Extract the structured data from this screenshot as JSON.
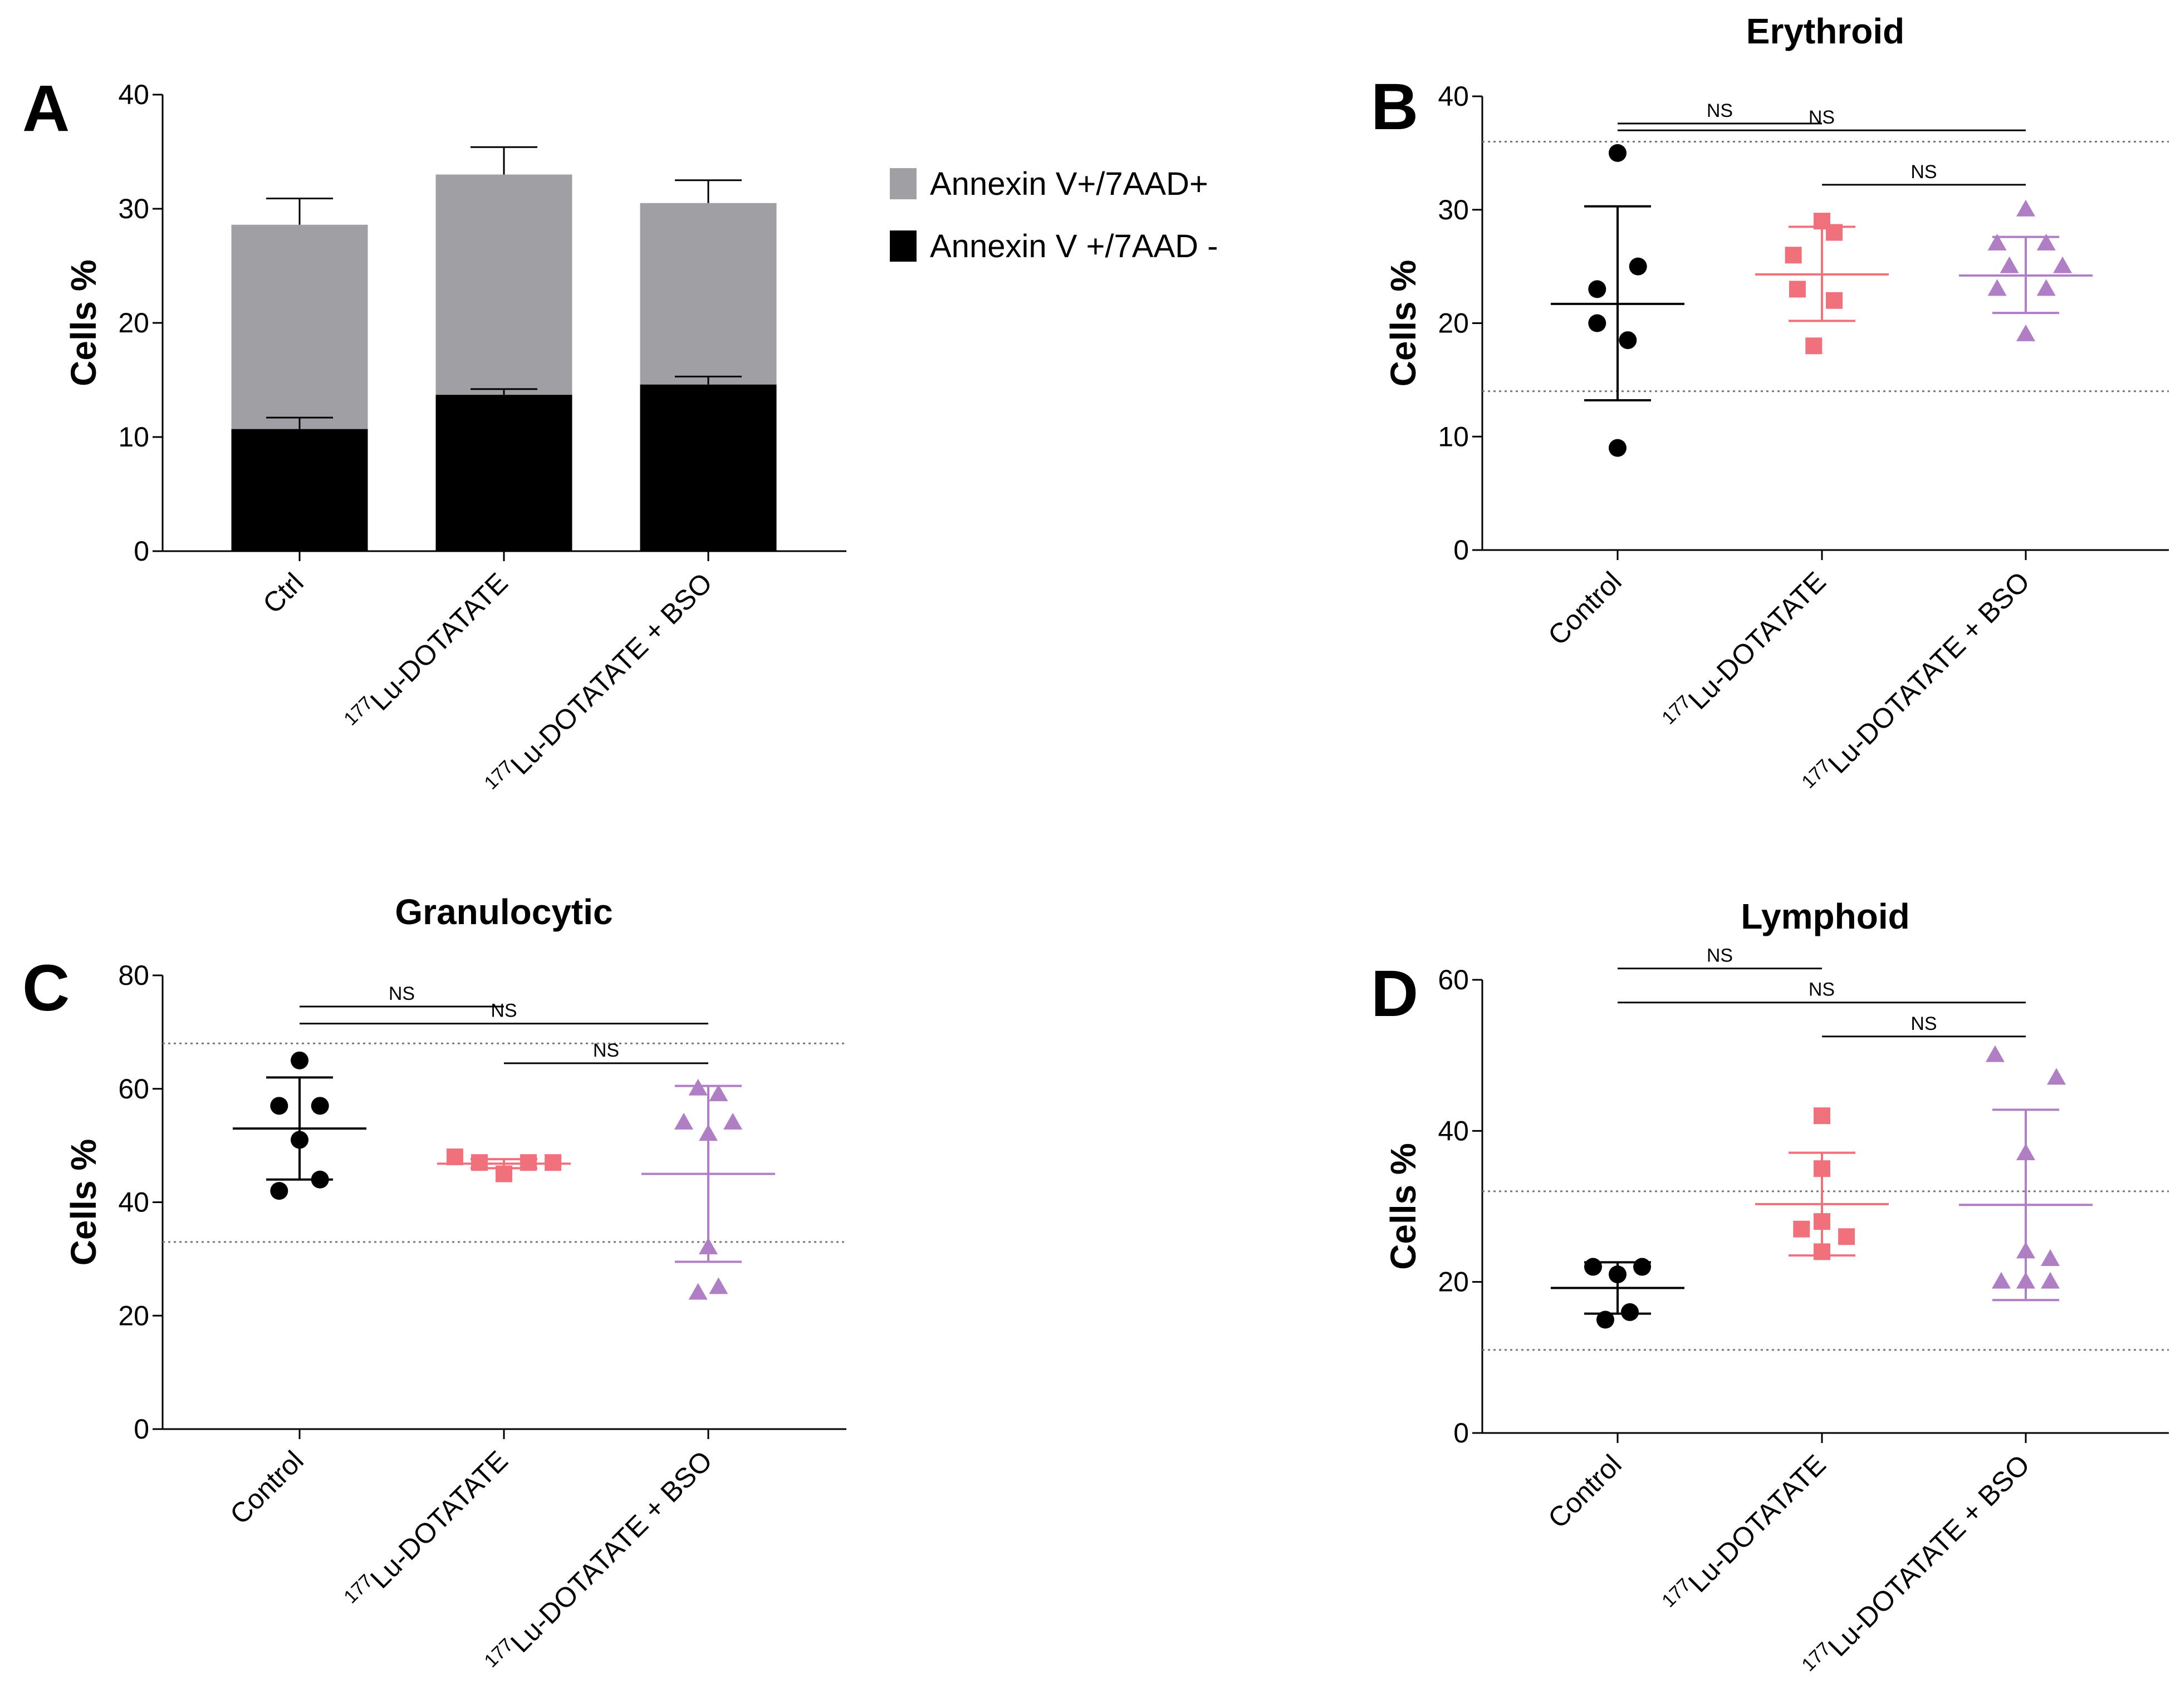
{
  "chart_data": [
    {
      "panel": "A",
      "type": "bar",
      "stacked": true,
      "title": "",
      "ylabel": "Cells %",
      "ylim": [
        0,
        40
      ],
      "yticks": [
        0,
        10,
        20,
        30,
        40
      ],
      "categories": [
        "Ctrl",
        "177Lu-DOTATATE",
        "177Lu-DOTATATE + BSO"
      ],
      "categories_display": [
        {
          "sup": "",
          "main": "Ctrl"
        },
        {
          "sup": "177",
          "main": "Lu-DOTATATE"
        },
        {
          "sup": "177",
          "main": "Lu-DOTATATE + BSO"
        }
      ],
      "series": [
        {
          "name": "Annexin V +/7AAD -",
          "color": "#000000",
          "values": [
            10.7,
            13.7,
            14.6
          ],
          "errors": [
            1.0,
            0.5,
            0.7
          ]
        },
        {
          "name": "Annexin V+/7AAD+",
          "color": "#a0a0a4",
          "values": [
            17.9,
            19.3,
            15.9
          ],
          "errors": [
            2.3,
            2.4,
            2.0
          ]
        }
      ],
      "legend_order": [
        "Annexin V+/7AAD+",
        "Annexin V +/7AAD -"
      ],
      "legend_position": "right"
    },
    {
      "panel": "B",
      "type": "scatter",
      "title": "Erythroid",
      "ylabel": "Cells %",
      "ylim": [
        0,
        40
      ],
      "yticks": [
        0,
        10,
        20,
        30,
        40
      ],
      "reference_lines": [
        36,
        14
      ],
      "categories": [
        "Control",
        "177Lu-DOTATATE",
        "177Lu-DOTATATE + BSO"
      ],
      "categories_display": [
        {
          "sup": "",
          "main": "Control"
        },
        {
          "sup": "177",
          "main": "Lu-DOTATATE"
        },
        {
          "sup": "177",
          "main": "Lu-DOTATATE + BSO"
        }
      ],
      "groups": [
        {
          "marker": "circle",
          "color": "#000000",
          "points": [
            [
              0.0,
              35
            ],
            [
              0.1,
              25
            ],
            [
              -0.1,
              23
            ],
            [
              -0.1,
              20
            ],
            [
              0.05,
              18.5
            ],
            [
              0.0,
              9
            ]
          ],
          "mean": 21.7,
          "sd_low": 13.2,
          "sd_high": 30.3
        },
        {
          "marker": "square",
          "color": "#f0717b",
          "points": [
            [
              0.0,
              29
            ],
            [
              0.06,
              28
            ],
            [
              -0.14,
              26
            ],
            [
              -0.12,
              23
            ],
            [
              0.06,
              22
            ],
            [
              -0.04,
              18
            ]
          ],
          "mean": 24.3,
          "sd_low": 20.2,
          "sd_high": 28.5
        },
        {
          "marker": "triangle",
          "color": "#b07ec4",
          "points": [
            [
              0.0,
              30
            ],
            [
              -0.14,
              27
            ],
            [
              0.1,
              27
            ],
            [
              -0.08,
              25
            ],
            [
              0.18,
              25
            ],
            [
              -0.14,
              23
            ],
            [
              0.1,
              23
            ],
            [
              0.0,
              19
            ]
          ],
          "mean": 24.2,
          "sd_low": 20.9,
          "sd_high": 27.6
        }
      ],
      "comparisons": [
        {
          "from": 0,
          "to": 1,
          "y": 37.6,
          "label": "NS"
        },
        {
          "from": 0,
          "to": 2,
          "y": 37.0,
          "label": "NS"
        },
        {
          "from": 1,
          "to": 2,
          "y": 32.2,
          "label": "NS"
        }
      ]
    },
    {
      "panel": "C",
      "type": "scatter",
      "title": "Granulocytic",
      "ylabel": "Cells %",
      "ylim": [
        0,
        80
      ],
      "yticks": [
        0,
        20,
        40,
        60,
        80
      ],
      "reference_lines": [
        68,
        33
      ],
      "categories": [
        "Control",
        "177Lu-DOTATATE",
        "177Lu-DOTATATE + BSO"
      ],
      "categories_display": [
        {
          "sup": "",
          "main": "Control"
        },
        {
          "sup": "177",
          "main": "Lu-DOTATATE"
        },
        {
          "sup": "177",
          "main": "Lu-DOTATATE + BSO"
        }
      ],
      "groups": [
        {
          "marker": "circle",
          "color": "#000000",
          "points": [
            [
              0.0,
              65
            ],
            [
              -0.1,
              57
            ],
            [
              0.1,
              57
            ],
            [
              0.0,
              51
            ],
            [
              0.1,
              44
            ],
            [
              -0.1,
              42
            ]
          ],
          "mean": 53.0,
          "sd_low": 44.0,
          "sd_high": 62.0
        },
        {
          "marker": "square",
          "color": "#f0717b",
          "points": [
            [
              -0.24,
              48
            ],
            [
              -0.12,
              47
            ],
            [
              0.12,
              47
            ],
            [
              0.24,
              47
            ],
            [
              0.0,
              45
            ]
          ],
          "mean": 46.8,
          "sd_low": 46.0,
          "sd_high": 47.6
        },
        {
          "marker": "triangle",
          "color": "#b07ec4",
          "points": [
            [
              -0.05,
              60
            ],
            [
              0.05,
              59
            ],
            [
              -0.12,
              54
            ],
            [
              0.12,
              54
            ],
            [
              0.0,
              52
            ],
            [
              0.0,
              32
            ],
            [
              0.05,
              25
            ],
            [
              -0.05,
              24
            ]
          ],
          "mean": 45.0,
          "sd_low": 29.5,
          "sd_high": 60.5
        }
      ],
      "comparisons": [
        {
          "from": 0,
          "to": 1,
          "y": 74.5,
          "label": "NS"
        },
        {
          "from": 0,
          "to": 2,
          "y": 71.5,
          "label": "NS"
        },
        {
          "from": 1,
          "to": 2,
          "y": 64.5,
          "label": "NS"
        }
      ]
    },
    {
      "panel": "D",
      "type": "scatter",
      "title": "Lymphoid",
      "ylabel": "Cells %",
      "ylim": [
        0,
        60
      ],
      "yticks": [
        0,
        20,
        40,
        60
      ],
      "reference_lines": [
        32,
        11
      ],
      "categories": [
        "Control",
        "177Lu-DOTATATE",
        "177Lu-DOTATATE + BSO"
      ],
      "categories_display": [
        {
          "sup": "",
          "main": "Control"
        },
        {
          "sup": "177",
          "main": "Lu-DOTATATE"
        },
        {
          "sup": "177",
          "main": "Lu-DOTATATE + BSO"
        }
      ],
      "groups": [
        {
          "marker": "circle",
          "color": "#000000",
          "points": [
            [
              -0.12,
              22
            ],
            [
              0.12,
              22
            ],
            [
              0.0,
              21
            ],
            [
              0.06,
              16
            ],
            [
              -0.06,
              15
            ]
          ],
          "mean": 19.2,
          "sd_low": 15.8,
          "sd_high": 22.6
        },
        {
          "marker": "square",
          "color": "#f0717b",
          "points": [
            [
              0.0,
              42
            ],
            [
              0.0,
              35
            ],
            [
              0.0,
              28
            ],
            [
              -0.1,
              27
            ],
            [
              0.12,
              26
            ],
            [
              0.0,
              24
            ]
          ],
          "mean": 30.3,
          "sd_low": 23.5,
          "sd_high": 37.1
        },
        {
          "marker": "triangle",
          "color": "#b07ec4",
          "points": [
            [
              -0.15,
              50
            ],
            [
              0.15,
              47
            ],
            [
              0.0,
              37
            ],
            [
              0.0,
              24
            ],
            [
              0.12,
              23
            ],
            [
              -0.12,
              20
            ],
            [
              0.0,
              20
            ],
            [
              0.12,
              20
            ]
          ],
          "mean": 30.2,
          "sd_low": 17.6,
          "sd_high": 42.8
        }
      ],
      "comparisons": [
        {
          "from": 0,
          "to": 1,
          "y": 61.5,
          "label": "NS"
        },
        {
          "from": 0,
          "to": 2,
          "y": 57.0,
          "label": "NS"
        },
        {
          "from": 1,
          "to": 2,
          "y": 52.5,
          "label": "NS"
        }
      ]
    }
  ]
}
